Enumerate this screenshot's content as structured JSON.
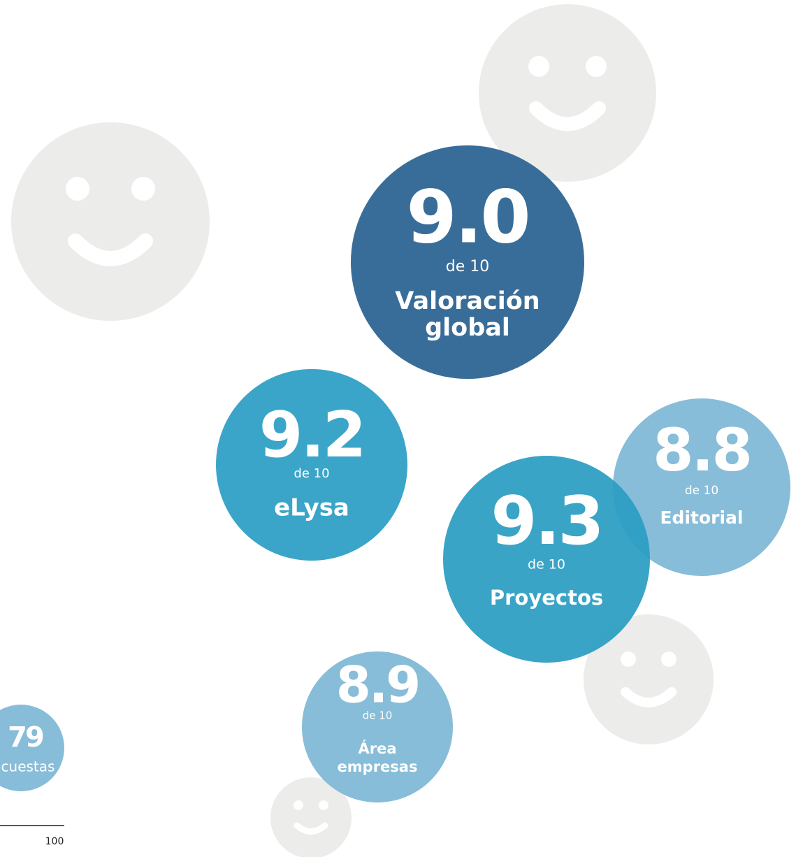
{
  "scores": [
    {
      "score": "9.0",
      "scale": "de 10",
      "label": [
        "Valoración",
        "global"
      ]
    },
    {
      "score": "9.2",
      "scale": "de 10",
      "label": [
        "eLysa"
      ]
    },
    {
      "score": "8.8",
      "scale": "de 10",
      "label": [
        "Editorial"
      ]
    },
    {
      "score": "9.3",
      "scale": "de 10",
      "label": [
        "Proyectos"
      ]
    },
    {
      "score": "8.9",
      "scale": "de 10",
      "label": [
        "Área",
        "empresas"
      ]
    }
  ],
  "responses": {
    "count": "79",
    "label": "cuestas"
  },
  "footer": {
    "page_number": "100"
  }
}
